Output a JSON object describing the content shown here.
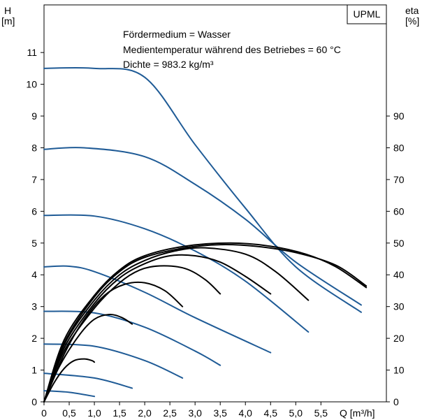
{
  "chart_data": {
    "type": "line",
    "badge": "UPML",
    "annotations": [
      "Fördermedium = Wasser",
      "Medientemperatur während des Betriebes = 60 °C",
      "Dichte = 983.2 kg/m³"
    ],
    "y_left": {
      "label_line1": "H",
      "label_line2": "[m]",
      "range": [
        0,
        12.5
      ],
      "ticks": [
        0,
        1,
        2,
        3,
        4,
        5,
        6,
        7,
        8,
        9,
        10,
        11
      ],
      "tick_labels": [
        "0",
        "1",
        "2",
        "3",
        "4",
        "5",
        "6",
        "7",
        "8",
        "9",
        "10",
        "11"
      ]
    },
    "y_right": {
      "label_line1": "eta",
      "label_line2": "[%]",
      "range": [
        0,
        125
      ],
      "ticks": [
        0,
        10,
        20,
        30,
        40,
        50,
        60,
        70,
        80,
        90
      ],
      "tick_labels": [
        "0",
        "10",
        "20",
        "30",
        "40",
        "50",
        "60",
        "70",
        "80",
        "90"
      ]
    },
    "x_axis": {
      "unit_label": "Q [m³/h]",
      "range": [
        0,
        6.8
      ],
      "ticks": [
        0,
        0.5,
        1.0,
        1.5,
        2.0,
        2.5,
        3.0,
        3.5,
        4.0,
        4.5,
        5.0,
        5.5
      ],
      "tick_labels": [
        "0",
        "0,5",
        "1,0",
        "1,5",
        "2,0",
        "2,5",
        "3,0",
        "3,5",
        "4,0",
        "4,5",
        "5,0",
        "5,5"
      ]
    },
    "grid": "none",
    "colors": {
      "head_curves": "#1f5b96",
      "efficiency_curves": "#000000"
    },
    "head_series": [
      {
        "x": [
          0,
          1,
          2.0,
          3.0,
          4.0,
          5.0,
          6.3
        ],
        "y": [
          10.5,
          10.5,
          10.22,
          8.1,
          6.1,
          4.25,
          2.82
        ]
      },
      {
        "x": [
          0,
          0.8,
          2.0,
          3.0,
          4.0,
          5.0,
          6.3
        ],
        "y": [
          7.95,
          8.0,
          7.72,
          6.85,
          5.75,
          4.4,
          3.05
        ]
      },
      {
        "x": [
          0,
          1,
          2,
          3,
          4,
          5.25
        ],
        "y": [
          5.87,
          5.85,
          5.45,
          4.75,
          3.8,
          2.2
        ]
      },
      {
        "x": [
          0,
          0.5,
          1,
          2,
          3,
          4.5
        ],
        "y": [
          4.25,
          4.27,
          4.1,
          3.45,
          2.65,
          1.55
        ]
      },
      {
        "x": [
          0,
          1,
          2,
          3,
          3.5
        ],
        "y": [
          2.85,
          2.8,
          2.35,
          1.6,
          1.15
        ]
      },
      {
        "x": [
          0,
          1,
          2,
          2.75
        ],
        "y": [
          1.82,
          1.75,
          1.3,
          0.75
        ]
      },
      {
        "x": [
          0,
          1,
          1.75
        ],
        "y": [
          0.9,
          0.75,
          0.43
        ]
      },
      {
        "x": [
          0,
          0.5,
          1.0
        ],
        "y": [
          0.35,
          0.3,
          0.17
        ]
      }
    ],
    "efficiency_series": [
      {
        "x": [
          0,
          0.4,
          1.0,
          1.5,
          2.0,
          2.8,
          3.7,
          4.5,
          5.2,
          5.8,
          6.4
        ],
        "y": [
          0,
          19.5,
          33.5,
          41.5,
          46.0,
          49.0,
          50.0,
          49.0,
          46.5,
          42.5,
          36.0
        ]
      },
      {
        "x": [
          0,
          0.4,
          1.0,
          1.5,
          2.0,
          2.8,
          3.5,
          4.2,
          5.0,
          5.8,
          6.4
        ],
        "y": [
          0,
          18.5,
          33.0,
          41.0,
          45.5,
          48.5,
          49.5,
          49.0,
          47.0,
          43.0,
          36.5
        ]
      },
      {
        "x": [
          0,
          0.4,
          1.0,
          1.5,
          2.0,
          2.6,
          3.2,
          4.0,
          4.6,
          5.25
        ],
        "y": [
          0,
          18.0,
          32.0,
          40.0,
          44.5,
          47.5,
          48.5,
          46.5,
          41.0,
          32.0
        ]
      },
      {
        "x": [
          0,
          0.4,
          1.0,
          1.5,
          2.0,
          2.5,
          3.0,
          3.5,
          4.0,
          4.5
        ],
        "y": [
          0,
          17.0,
          31.0,
          39.0,
          43.5,
          46.0,
          46.0,
          44.0,
          39.5,
          34.0
        ]
      },
      {
        "x": [
          0,
          0.4,
          1.0,
          1.5,
          1.9,
          2.3,
          2.8,
          3.2,
          3.5
        ],
        "y": [
          0,
          16.0,
          29.5,
          37.5,
          41.5,
          42.8,
          42.0,
          38.5,
          34.0
        ]
      },
      {
        "x": [
          0,
          0.4,
          0.8,
          1.2,
          1.6,
          2.0,
          2.4,
          2.75
        ],
        "y": [
          0,
          15.0,
          26.0,
          33.5,
          37.0,
          37.5,
          35.0,
          30.0
        ]
      },
      {
        "x": [
          0,
          0.3,
          0.7,
          1.0,
          1.3,
          1.55,
          1.75
        ],
        "y": [
          0,
          11.0,
          21.0,
          26.0,
          27.5,
          26.5,
          24.5
        ]
      },
      {
        "x": [
          0,
          0.2,
          0.4,
          0.6,
          0.8,
          0.95,
          1.0
        ],
        "y": [
          0,
          6.0,
          10.5,
          13.0,
          13.5,
          13.0,
          12.5
        ]
      }
    ]
  }
}
